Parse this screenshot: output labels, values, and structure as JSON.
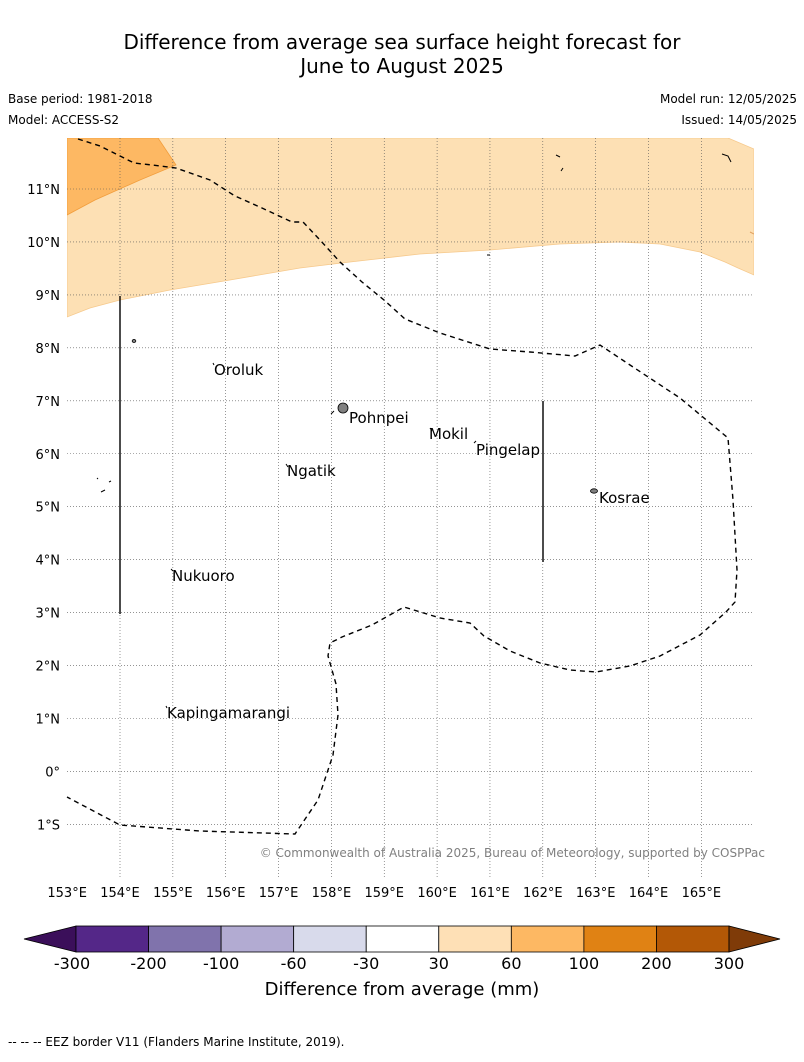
{
  "header": {
    "title_line1": "Difference from average sea surface height forecast for",
    "title_line2": "June to August 2025",
    "base_period": "Base period: 1981-2018",
    "model": "Model: ACCESS-S2",
    "model_run": "Model run: 12/05/2025",
    "issued": "Issued: 14/05/2025"
  },
  "map": {
    "lat_ticks": [
      "11°N",
      "10°N",
      "9°N",
      "8°N",
      "7°N",
      "6°N",
      "5°N",
      "4°N",
      "3°N",
      "2°N",
      "1°N",
      "0°",
      "1°S"
    ],
    "lon_ticks": [
      "153°E",
      "154°E",
      "155°E",
      "156°E",
      "157°E",
      "158°E",
      "159°E",
      "160°E",
      "161°E",
      "162°E",
      "163°E",
      "164°E",
      "165°E"
    ],
    "places": [
      "Oroluk",
      "Pohnpei",
      "Mokil",
      "Pingelap",
      "Ngatik",
      "Kosrae",
      "Nukuoro",
      "Kapingamarangi"
    ],
    "copyright": "© Commonwealth of Australia 2025, Bureau of Meteorology, supported by COSPPac",
    "colors": {
      "band_30_60": "#fde0b4",
      "band_60_100": "#fdb863",
      "land": "#808080"
    }
  },
  "colorbar": {
    "ticks": [
      "-300",
      "-200",
      "-100",
      "-60",
      "-30",
      "30",
      "60",
      "100",
      "200",
      "300"
    ],
    "colors": [
      "#3b0f5a",
      "#542788",
      "#8073ac",
      "#b2abd2",
      "#d8daeb",
      "#ffffff",
      "#fee0b6",
      "#fdb863",
      "#e08214",
      "#b35806",
      "#7f3b08"
    ],
    "label": "Difference from average (mm)"
  },
  "footer": {
    "eez_note": "--  --  -- EEZ border V11 (Flanders Marine Institute, 2019)."
  }
}
